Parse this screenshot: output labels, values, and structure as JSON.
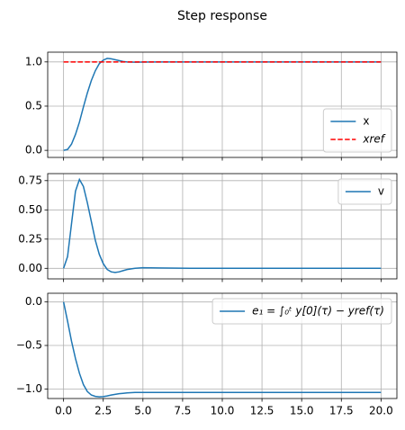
{
  "title": "Step response",
  "chart_data": [
    {
      "type": "line",
      "x": [
        0,
        0.25,
        0.5,
        0.75,
        1,
        1.25,
        1.5,
        1.75,
        2,
        2.25,
        2.5,
        2.75,
        3,
        3.25,
        3.5,
        3.75,
        4,
        4.5,
        5,
        6,
        8,
        10,
        12,
        14,
        16,
        18,
        20
      ],
      "series": [
        {
          "name": "x",
          "color": "#1f77b4",
          "dash": "solid",
          "values": [
            0,
            0.01,
            0.07,
            0.18,
            0.32,
            0.49,
            0.65,
            0.79,
            0.9,
            0.98,
            1.02,
            1.04,
            1.035,
            1.025,
            1.015,
            1.005,
            1.0,
            0.997,
            0.998,
            1,
            1,
            1,
            1,
            1,
            1,
            1,
            1
          ]
        },
        {
          "name": "xref",
          "color": "#ff0000",
          "dash": "dashed",
          "x": [
            0,
            20
          ],
          "values": [
            1,
            1
          ]
        }
      ],
      "xlim": [
        -1,
        21
      ],
      "ylim": [
        -0.08,
        1.11
      ],
      "xticks": [
        0,
        2.5,
        5,
        7.5,
        10,
        12.5,
        15,
        17.5,
        20
      ],
      "yticks": [
        {
          "value": 0,
          "label": "0.0"
        },
        0.5,
        {
          "value": 1,
          "label": "1.0"
        }
      ],
      "grid": true,
      "legend": "lower-right"
    },
    {
      "type": "line",
      "x": [
        0,
        0.25,
        0.5,
        0.75,
        1,
        1.25,
        1.5,
        1.75,
        2,
        2.25,
        2.5,
        2.75,
        3,
        3.25,
        3.5,
        3.75,
        4,
        4.5,
        5,
        6,
        8,
        10,
        12,
        14,
        16,
        18,
        20
      ],
      "series": [
        {
          "name": "v",
          "color": "#1f77b4",
          "dash": "solid",
          "values": [
            0,
            0.1,
            0.38,
            0.66,
            0.76,
            0.7,
            0.56,
            0.4,
            0.24,
            0.12,
            0.04,
            -0.01,
            -0.03,
            -0.035,
            -0.03,
            -0.02,
            -0.01,
            0,
            0.005,
            0.003,
            0,
            0,
            0,
            0,
            0,
            0,
            0
          ]
        }
      ],
      "xlim": [
        -1,
        21
      ],
      "ylim": [
        -0.09,
        0.81
      ],
      "xticks": [
        0,
        2.5,
        5,
        7.5,
        10,
        12.5,
        15,
        17.5,
        20
      ],
      "yticks": [
        {
          "value": 0,
          "label": "0.00"
        },
        {
          "value": 0.25,
          "label": "0.25"
        },
        {
          "value": 0.5,
          "label": "0.50"
        },
        {
          "value": 0.75,
          "label": "0.75"
        }
      ],
      "grid": true,
      "legend": "upper-right"
    },
    {
      "type": "line",
      "x": [
        0,
        0.25,
        0.5,
        0.75,
        1,
        1.25,
        1.5,
        1.75,
        2,
        2.25,
        2.5,
        2.75,
        3,
        3.25,
        3.5,
        3.75,
        4,
        4.5,
        5,
        6,
        8,
        10,
        12,
        14,
        16,
        18,
        20
      ],
      "series": [
        {
          "name": "e₁ = ∫₀ᵗ y[0](τ) − yref(τ)",
          "color": "#1f77b4",
          "dash": "solid",
          "values": [
            0,
            -0.22,
            -0.45,
            -0.65,
            -0.82,
            -0.95,
            -1.03,
            -1.07,
            -1.085,
            -1.09,
            -1.088,
            -1.08,
            -1.07,
            -1.062,
            -1.055,
            -1.05,
            -1.045,
            -1.04,
            -1.04,
            -1.04,
            -1.04,
            -1.04,
            -1.04,
            -1.04,
            -1.04,
            -1.04,
            -1.04
          ]
        }
      ],
      "xlim": [
        -1,
        21
      ],
      "ylim": [
        -1.11,
        0.1
      ],
      "xticks": [
        {
          "value": 0,
          "label": "0.0"
        },
        2.5,
        {
          "value": 5,
          "label": "5.0"
        },
        7.5,
        {
          "value": 10,
          "label": "10.0"
        },
        12.5,
        {
          "value": 15,
          "label": "15.0"
        },
        17.5,
        {
          "value": 20,
          "label": "20.0"
        }
      ],
      "yticks": [
        {
          "value": -1,
          "label": "−1.0"
        },
        {
          "value": -0.5,
          "label": "−0.5"
        },
        {
          "value": 0,
          "label": "0.0"
        }
      ],
      "grid": true,
      "legend": "upper-right"
    }
  ]
}
